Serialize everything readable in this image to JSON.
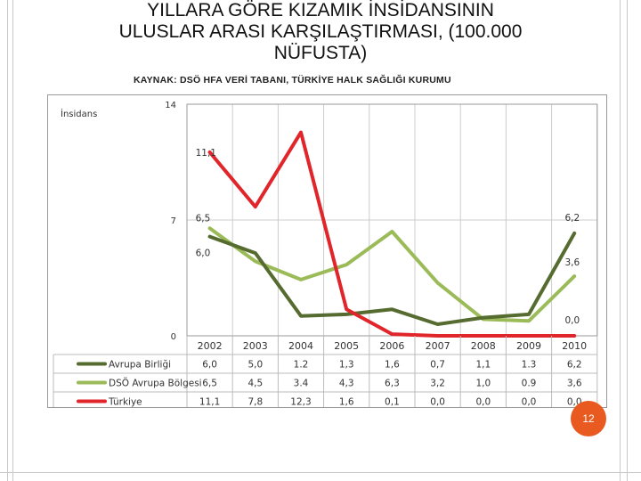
{
  "title_lines": [
    "YILLARA GÖRE KIZAMIK İNSİDANSININ",
    "ULUSLAR ARASI KARŞILAŞTIRMASI, (100.000",
    "NÜFUSTA)"
  ],
  "source": "KAYNAK: DSÖ HFA VERİ TABANI, TÜRKİYE HALK SAĞLIĞI KURUMU",
  "page_number": "12",
  "colors": {
    "eu": "#556b2f",
    "who_europe": "#9bbb59",
    "turkey": "#e0252b",
    "grid": "#cccccc",
    "table_border": "#bbbbbb"
  },
  "chart_data": {
    "type": "line",
    "ylabel": "İnsidans",
    "ylim": [
      0,
      14
    ],
    "yticks": [
      "0",
      "7",
      "14"
    ],
    "categories": [
      "2002",
      "2003",
      "2004",
      "2005",
      "2006",
      "2007",
      "2008",
      "2009",
      "2010"
    ],
    "series": [
      {
        "name": "Avrupa Birliği",
        "color": "#556b2f",
        "values": [
          6.0,
          5.0,
          1.2,
          1.3,
          1.6,
          0.7,
          1.1,
          1.3,
          6.2
        ],
        "table": [
          "6,0",
          "5,0",
          "1.2",
          "1,3",
          "1,6",
          "0,7",
          "1,1",
          "1.3",
          "6,2"
        ]
      },
      {
        "name": "DSÖ Avrupa Bölgesi",
        "color": "#9bbb59",
        "values": [
          6.5,
          4.5,
          3.4,
          4.3,
          6.3,
          3.2,
          1.0,
          0.9,
          3.6
        ],
        "table": [
          "6,5",
          "4,5",
          "3.4",
          "4,3",
          "6,3",
          "3,2",
          "1,0",
          "0.9",
          "3,6"
        ]
      },
      {
        "name": "Türkiye",
        "color": "#e0252b",
        "values": [
          11.1,
          7.8,
          12.3,
          1.6,
          0.1,
          0.0,
          0.0,
          0.0,
          0.0
        ],
        "table": [
          "11,1",
          "7,8",
          "12,3",
          "1,6",
          "0,1",
          "0,0",
          "0,0",
          "0,0",
          "0,0"
        ]
      }
    ],
    "annotations": [
      {
        "text": "11,1",
        "series": 2,
        "index": 0
      },
      {
        "text": "6,5",
        "series": 1,
        "index": 0
      },
      {
        "text": "6,0",
        "series": 0,
        "index": 0
      },
      {
        "text": "6,2",
        "series": 0,
        "index": 8
      },
      {
        "text": "3,6",
        "series": 1,
        "index": 8
      },
      {
        "text": "0,0",
        "series": 2,
        "index": 8
      }
    ],
    "legend_placement": "data-table-below",
    "grid": true
  }
}
